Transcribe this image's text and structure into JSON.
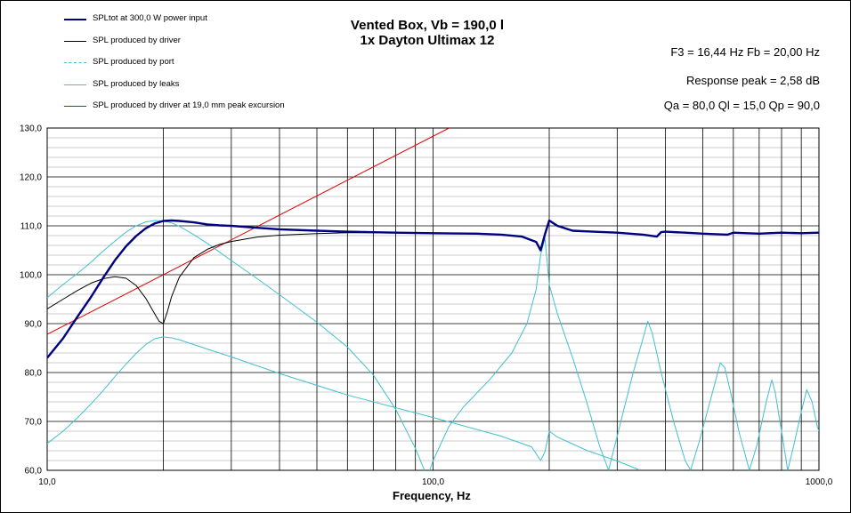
{
  "chart_data": {
    "type": "line",
    "title": "Vented Box, Vb = 190,0 l",
    "subtitle": "1x Dayton Ultimax 12",
    "xlabel": "Frequency, Hz",
    "ylabel": "",
    "x_scale": "log",
    "xlim": [
      10,
      1000
    ],
    "ylim": [
      60,
      130
    ],
    "grid": true,
    "legend_position": "top-left",
    "x_ticks": [
      "10,0",
      "100,0",
      "1000,0"
    ],
    "y_ticks": [
      "60,0",
      "70,0",
      "80,0",
      "90,0",
      "100,0",
      "110,0",
      "120,0",
      "130,0"
    ],
    "annotations": [
      "F3 = 16,44  Hz  Fb = 20,00  Hz",
      "Response  peak = 2,58 dB",
      "Qa = 80,0  Ql = 15,0  Qp = 90,0"
    ],
    "series": [
      {
        "name": "SPLtot at 300,0 W  power input",
        "color": "#000080",
        "x": [
          10,
          11,
          12,
          13,
          14,
          15,
          16,
          17,
          18,
          19,
          20,
          21,
          22,
          24,
          26,
          28,
          30,
          35,
          40,
          50,
          60,
          80,
          100,
          130,
          150,
          170,
          185,
          190,
          195,
          200,
          210,
          230,
          260,
          300,
          350,
          380,
          390,
          400,
          450,
          500,
          580,
          600,
          650,
          700,
          800,
          900,
          1000
        ],
        "y": [
          83,
          87,
          91.5,
          95.5,
          99.5,
          103,
          105.8,
          107.9,
          109.5,
          110.5,
          111.0,
          111.1,
          111.0,
          110.7,
          110.3,
          110.1,
          110.0,
          109.6,
          109.3,
          109.0,
          108.8,
          108.6,
          108.5,
          108.4,
          108.2,
          107.8,
          106.7,
          105.0,
          108.3,
          111.1,
          110.0,
          109.0,
          108.8,
          108.6,
          108.2,
          107.8,
          108.7,
          108.8,
          108.6,
          108.4,
          108.2,
          108.6,
          108.5,
          108.4,
          108.6,
          108.5,
          108.6
        ]
      },
      {
        "name": "SPL produced by driver",
        "color": "#000000",
        "x": [
          10,
          11,
          12,
          13,
          14,
          15,
          16,
          17,
          18,
          19,
          19.5,
          20,
          20.5,
          21,
          22,
          24,
          26,
          28,
          30,
          35,
          40,
          50,
          60,
          80,
          100
        ],
        "y": [
          93,
          95,
          96.8,
          98.3,
          99.2,
          99.6,
          99.3,
          97.8,
          95.2,
          92,
          90.5,
          90,
          92.5,
          95.5,
          99.5,
          103.5,
          105.2,
          106.2,
          106.8,
          107.7,
          108.1,
          108.4,
          108.6,
          108.6,
          108.5
        ]
      },
      {
        "name": "SPL produced by port",
        "color": "#40c0d0",
        "x": [
          10,
          11,
          12,
          13,
          14,
          15,
          16,
          17,
          18,
          19,
          20,
          21,
          22,
          24,
          26,
          28,
          30,
          35,
          40,
          50,
          60,
          70,
          80,
          90,
          95
        ],
        "y": [
          95.3,
          98,
          100.3,
          102.6,
          104.9,
          106.9,
          108.7,
          110.0,
          110.8,
          111.1,
          111.0,
          110.6,
          109.9,
          108.2,
          106.4,
          104.6,
          102.9,
          99.2,
          95.9,
          90.3,
          85.2,
          79.5,
          72.5,
          64.5,
          60
        ]
      },
      {
        "name": "SPL produced by leaks",
        "color": "#40c0d0",
        "x": [
          10,
          11,
          12,
          13,
          14,
          15,
          16,
          17,
          18,
          19,
          20,
          21,
          22,
          24,
          26,
          30,
          40,
          60,
          100,
          150,
          180,
          190,
          195,
          200,
          210,
          250,
          300,
          340
        ],
        "y": [
          65.5,
          68,
          70.8,
          73.6,
          76.4,
          79.2,
          81.7,
          83.9,
          85.7,
          86.9,
          87.3,
          87.1,
          86.7,
          85.7,
          84.8,
          83.2,
          79.8,
          75.4,
          70.8,
          67.0,
          64.8,
          62.0,
          63.8,
          68.0,
          66.8,
          64.1,
          61.9,
          60.2
        ]
      },
      {
        "name": "SPL produced by driver at 19,0 mm peak excursion",
        "color": "#e00000",
        "x": [
          10,
          110
        ],
        "y": [
          87.8,
          130
        ]
      }
    ],
    "resonance_series": [
      {
        "color": "#40c0d0",
        "x": [
          98,
          100,
          110,
          120,
          140,
          160,
          175,
          185,
          190,
          195,
          200,
          210,
          230,
          250,
          270,
          285
        ],
        "y": [
          60,
          62,
          69,
          73,
          78.5,
          84,
          90,
          97,
          104,
          107.5,
          98,
          92,
          83,
          74,
          65,
          60
        ]
      },
      {
        "color": "#40c0d0",
        "x": [
          285,
          300,
          330,
          350,
          360,
          370,
          390,
          420,
          450,
          465
        ],
        "y": [
          60,
          67,
          80,
          87,
          90.5,
          88,
          80,
          70,
          62,
          60
        ]
      },
      {
        "color": "#40c0d0",
        "x": [
          465,
          490,
          530,
          555,
          570,
          590,
          620,
          660
        ],
        "y": [
          60,
          66,
          76,
          82,
          81,
          76,
          68,
          60
        ]
      },
      {
        "color": "#40c0d0",
        "x": [
          660,
          690,
          730,
          755,
          770,
          800,
          830
        ],
        "y": [
          60,
          65,
          74,
          78.5,
          76,
          68,
          60
        ]
      },
      {
        "color": "#40c0d0",
        "x": [
          830,
          860,
          900,
          930,
          960,
          990,
          1000
        ],
        "y": [
          60,
          65,
          72,
          76.5,
          74,
          69,
          68
        ]
      }
    ]
  }
}
